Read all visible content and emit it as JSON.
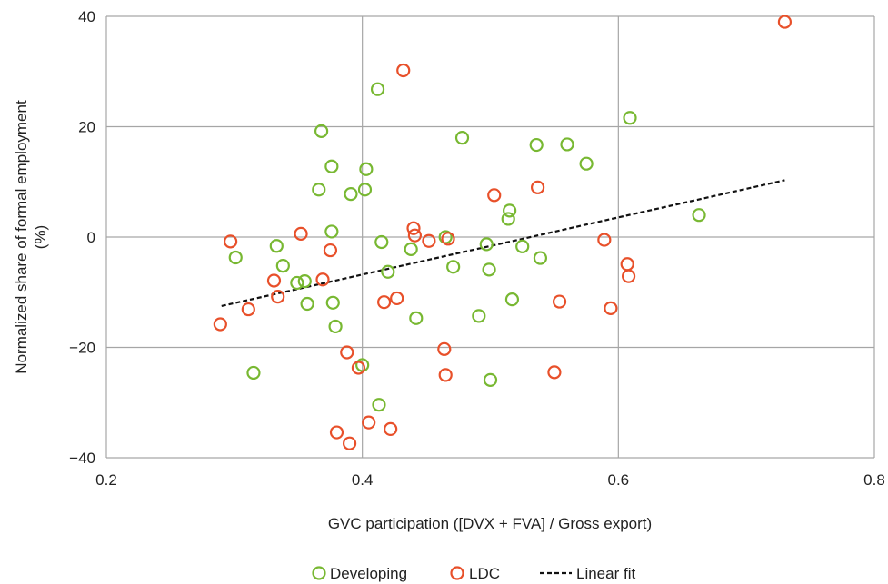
{
  "chart_data": {
    "type": "scatter",
    "title": "",
    "xlabel": "GVC participation ([DVX + FVA] / Gross export)",
    "ylabel_line1": "Normalized share of formal employment",
    "ylabel_line2": "(%)",
    "xlim": [
      0.2,
      0.8
    ],
    "ylim": [
      -40,
      40
    ],
    "x_ticks": [
      0.2,
      0.4,
      0.6,
      0.8
    ],
    "x_tick_labels": [
      "0.2",
      "0.4",
      "0.6",
      "0.8"
    ],
    "y_ticks": [
      -40,
      -20,
      0,
      20,
      40
    ],
    "y_tick_labels": [
      "−40",
      "−20",
      "0",
      "20",
      "40"
    ],
    "grid": true,
    "legend_position": "bottom-center",
    "series": [
      {
        "name": "Developing",
        "color": "#78b832",
        "marker": "open-circle",
        "points": [
          [
            0.301,
            -3.7
          ],
          [
            0.315,
            -24.6
          ],
          [
            0.333,
            -1.6
          ],
          [
            0.338,
            -5.2
          ],
          [
            0.349,
            -8.3
          ],
          [
            0.355,
            -8.0
          ],
          [
            0.357,
            -12.1
          ],
          [
            0.366,
            8.6
          ],
          [
            0.368,
            19.2
          ],
          [
            0.376,
            12.8
          ],
          [
            0.376,
            1.0
          ],
          [
            0.377,
            -11.9
          ],
          [
            0.379,
            -16.2
          ],
          [
            0.391,
            7.8
          ],
          [
            0.4,
            -23.2
          ],
          [
            0.402,
            8.6
          ],
          [
            0.403,
            12.3
          ],
          [
            0.412,
            26.8
          ],
          [
            0.413,
            -30.4
          ],
          [
            0.415,
            -0.9
          ],
          [
            0.42,
            -6.3
          ],
          [
            0.438,
            -2.2
          ],
          [
            0.442,
            -14.7
          ],
          [
            0.465,
            0.0
          ],
          [
            0.471,
            -5.4
          ],
          [
            0.478,
            18.0
          ],
          [
            0.491,
            -14.3
          ],
          [
            0.497,
            -1.3
          ],
          [
            0.499,
            -5.9
          ],
          [
            0.5,
            -25.9
          ],
          [
            0.514,
            3.3
          ],
          [
            0.515,
            4.8
          ],
          [
            0.517,
            -11.3
          ],
          [
            0.525,
            -1.7
          ],
          [
            0.536,
            16.7
          ],
          [
            0.539,
            -3.8
          ],
          [
            0.56,
            16.8
          ],
          [
            0.575,
            13.3
          ],
          [
            0.609,
            21.6
          ],
          [
            0.663,
            4.0
          ]
        ]
      },
      {
        "name": "LDC",
        "color": "#e8502a",
        "marker": "open-circle",
        "points": [
          [
            0.289,
            -15.8
          ],
          [
            0.297,
            -0.8
          ],
          [
            0.311,
            -13.1
          ],
          [
            0.331,
            -7.9
          ],
          [
            0.334,
            -10.8
          ],
          [
            0.352,
            0.6
          ],
          [
            0.369,
            -7.7
          ],
          [
            0.375,
            -2.4
          ],
          [
            0.38,
            -35.4
          ],
          [
            0.388,
            -20.9
          ],
          [
            0.39,
            -37.4
          ],
          [
            0.397,
            -23.7
          ],
          [
            0.405,
            -33.6
          ],
          [
            0.417,
            -11.8
          ],
          [
            0.422,
            -34.8
          ],
          [
            0.427,
            -11.1
          ],
          [
            0.432,
            30.2
          ],
          [
            0.44,
            1.6
          ],
          [
            0.441,
            0.3
          ],
          [
            0.452,
            -0.7
          ],
          [
            0.464,
            -20.3
          ],
          [
            0.465,
            -25.0
          ],
          [
            0.467,
            -0.3
          ],
          [
            0.503,
            7.6
          ],
          [
            0.537,
            9.0
          ],
          [
            0.55,
            -24.5
          ],
          [
            0.554,
            -11.7
          ],
          [
            0.589,
            -0.5
          ],
          [
            0.594,
            -12.9
          ],
          [
            0.607,
            -4.9
          ],
          [
            0.608,
            -7.1
          ],
          [
            0.73,
            39.0
          ]
        ]
      }
    ],
    "fit": {
      "name": "Linear fit",
      "color": "#111111",
      "style": "dashed",
      "x": [
        0.29,
        0.73
      ],
      "y": [
        -12.5,
        10.3
      ]
    }
  },
  "legend": {
    "items": [
      "Developing",
      "LDC",
      "Linear fit"
    ]
  }
}
